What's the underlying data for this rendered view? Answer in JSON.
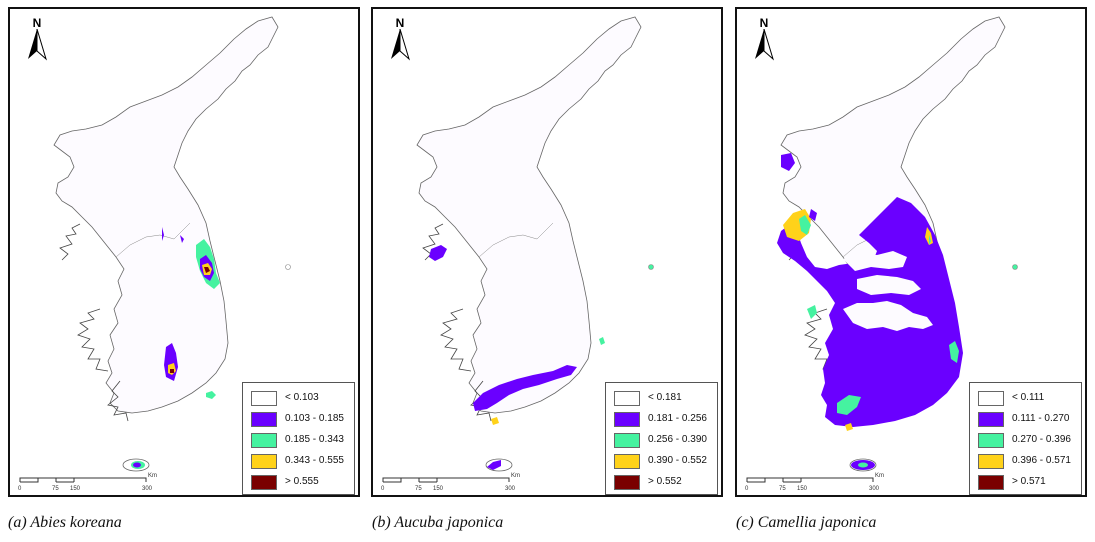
{
  "north_label": "N",
  "scale_unit": "Km",
  "scale_ticks": [
    "0",
    "75",
    "150",
    "300"
  ],
  "colors": {
    "class1": "#ffffff",
    "class2": "#6a00ff",
    "class3": "#45f2a0",
    "class4": "#ffd21a",
    "class5": "#7a0000"
  },
  "panels": [
    {
      "caption": "(a)  Abies koreana",
      "legend": [
        "< 0.103",
        "0.103 - 0.185",
        "0.185 - 0.343",
        "0.343 - 0.555",
        "> 0.555"
      ]
    },
    {
      "caption": "(b)  Aucuba japonica",
      "legend": [
        "< 0.181",
        "0.181 - 0.256",
        "0.256 - 0.390",
        "0.390 - 0.552",
        "> 0.552"
      ]
    },
    {
      "caption": "(c)  Camellia japonica",
      "legend": [
        "< 0.111",
        "0.111 - 0.270",
        "0.270 - 0.396",
        "0.396 - 0.571",
        "> 0.571"
      ]
    }
  ]
}
